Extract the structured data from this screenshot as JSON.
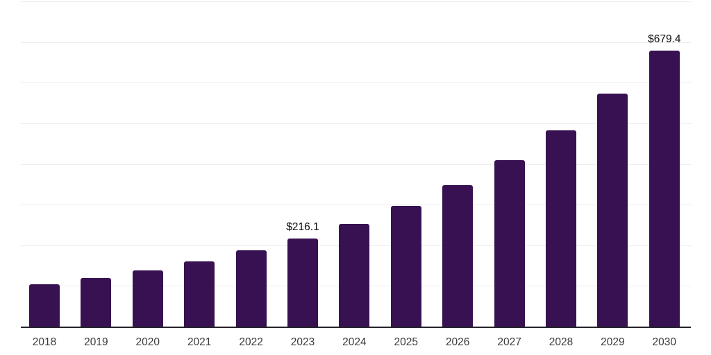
{
  "chart_data": {
    "type": "bar",
    "title": "",
    "xlabel": "",
    "ylabel": "",
    "categories": [
      "2018",
      "2019",
      "2020",
      "2021",
      "2022",
      "2023",
      "2024",
      "2025",
      "2026",
      "2027",
      "2028",
      "2029",
      "2030"
    ],
    "values": [
      103.6,
      119.0,
      137.7,
      159.9,
      187.2,
      216.1,
      252.1,
      296.0,
      347.7,
      409.1,
      482.0,
      573.0,
      679.4
    ],
    "value_labels": [
      "",
      "",
      "",
      "",
      "",
      "$216.1",
      "",
      "",
      "",
      "",
      "",
      "",
      "$679.4"
    ],
    "ylim": [
      0,
      800
    ],
    "gridline_step": 100,
    "grid": "horizontal-only",
    "legend": "none",
    "bar_color": "#371152",
    "axis_line_color": "#26232b",
    "gridline_color": "#ececec",
    "tick_label_color": "#3a3a3a",
    "value_label_color": "#0d0d0d"
  }
}
